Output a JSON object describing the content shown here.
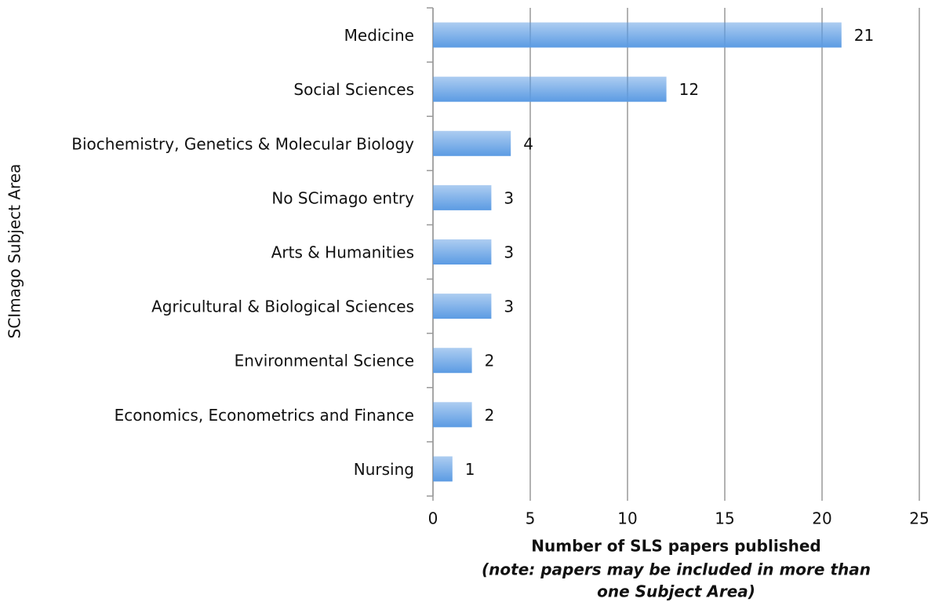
{
  "chart_data": {
    "type": "bar",
    "orientation": "horizontal",
    "categories": [
      "Medicine",
      "Social Sciences",
      "Biochemistry, Genetics & Molecular Biology",
      "No SCimago entry",
      "Arts & Humanities",
      "Agricultural & Biological Sciences",
      "Environmental Science",
      "Economics, Econometrics and Finance",
      "Nursing"
    ],
    "values": [
      21,
      12,
      4,
      3,
      3,
      3,
      2,
      2,
      1
    ],
    "color": "#5b9be3",
    "xlim": [
      0,
      25
    ],
    "xticks": [
      0,
      5,
      10,
      15,
      20,
      25
    ],
    "grid": true,
    "xlabel": "Number of SLS papers published",
    "note": [
      "(note: papers may be included in more than",
      "one Subject Area)"
    ],
    "ylabel": "SCImago Subject Area"
  }
}
